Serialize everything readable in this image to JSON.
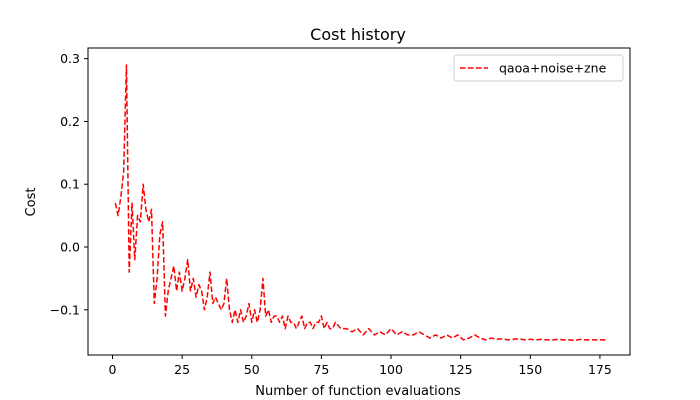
{
  "chart_data": {
    "type": "line",
    "title": "Cost history",
    "xlabel": "Number of function evaluations",
    "ylabel": "Cost",
    "xlim": [
      -8.8,
      185.8
    ],
    "ylim": [
      -0.172,
      0.317
    ],
    "xticks": [
      0,
      25,
      50,
      75,
      100,
      125,
      150,
      175
    ],
    "yticks": [
      -0.1,
      0.0,
      0.1,
      0.2,
      0.3
    ],
    "ytick_labels": [
      "−0.1",
      "0.0",
      "0.1",
      "0.2",
      "0.3"
    ],
    "grid": false,
    "legend_position": "upper-right",
    "series": [
      {
        "name": "qaoa+noise+zne",
        "color": "#ff0000",
        "linestyle": "dashed",
        "x": [
          1,
          2,
          3,
          4,
          5,
          6,
          7,
          8,
          9,
          10,
          11,
          12,
          13,
          14,
          15,
          16,
          17,
          18,
          19,
          20,
          21,
          22,
          23,
          24,
          25,
          26,
          27,
          28,
          29,
          30,
          31,
          32,
          33,
          34,
          35,
          36,
          37,
          38,
          39,
          40,
          41,
          42,
          43,
          44,
          45,
          46,
          47,
          48,
          49,
          50,
          51,
          52,
          53,
          54,
          55,
          56,
          57,
          58,
          59,
          60,
          61,
          62,
          63,
          64,
          65,
          66,
          67,
          68,
          69,
          70,
          71,
          72,
          73,
          74,
          75,
          76,
          77,
          78,
          79,
          80,
          82,
          84,
          86,
          88,
          90,
          92,
          94,
          96,
          98,
          100,
          102,
          104,
          106,
          108,
          110,
          112,
          114,
          116,
          118,
          120,
          122,
          124,
          126,
          128,
          130,
          132,
          134,
          136,
          138,
          140,
          142,
          144,
          146,
          148,
          150,
          152,
          154,
          156,
          158,
          160,
          162,
          164,
          166,
          168,
          170,
          172,
          174,
          176,
          177
        ],
        "y": [
          0.07,
          0.05,
          0.08,
          0.12,
          0.29,
          -0.04,
          0.07,
          -0.02,
          0.05,
          0.04,
          0.1,
          0.06,
          0.04,
          0.06,
          -0.09,
          -0.05,
          0.02,
          0.04,
          -0.11,
          -0.07,
          -0.05,
          -0.03,
          -0.07,
          -0.04,
          -0.07,
          -0.05,
          -0.02,
          -0.07,
          -0.05,
          -0.08,
          -0.06,
          -0.07,
          -0.1,
          -0.08,
          -0.04,
          -0.09,
          -0.08,
          -0.09,
          -0.1,
          -0.09,
          -0.05,
          -0.1,
          -0.12,
          -0.1,
          -0.12,
          -0.1,
          -0.12,
          -0.11,
          -0.09,
          -0.12,
          -0.1,
          -0.12,
          -0.1,
          -0.05,
          -0.11,
          -0.1,
          -0.12,
          -0.11,
          -0.11,
          -0.12,
          -0.11,
          -0.13,
          -0.11,
          -0.12,
          -0.12,
          -0.13,
          -0.12,
          -0.11,
          -0.13,
          -0.12,
          -0.12,
          -0.13,
          -0.12,
          -0.12,
          -0.11,
          -0.13,
          -0.12,
          -0.13,
          -0.13,
          -0.12,
          -0.13,
          -0.13,
          -0.135,
          -0.13,
          -0.14,
          -0.13,
          -0.14,
          -0.135,
          -0.14,
          -0.13,
          -0.14,
          -0.135,
          -0.14,
          -0.14,
          -0.135,
          -0.14,
          -0.145,
          -0.14,
          -0.145,
          -0.14,
          -0.145,
          -0.14,
          -0.148,
          -0.145,
          -0.14,
          -0.145,
          -0.148,
          -0.145,
          -0.147,
          -0.146,
          -0.148,
          -0.147,
          -0.146,
          -0.148,
          -0.147,
          -0.148,
          -0.147,
          -0.148,
          -0.148,
          -0.147,
          -0.148,
          -0.148,
          -0.149,
          -0.147,
          -0.148,
          -0.148,
          -0.148,
          -0.148,
          -0.148
        ]
      }
    ]
  }
}
